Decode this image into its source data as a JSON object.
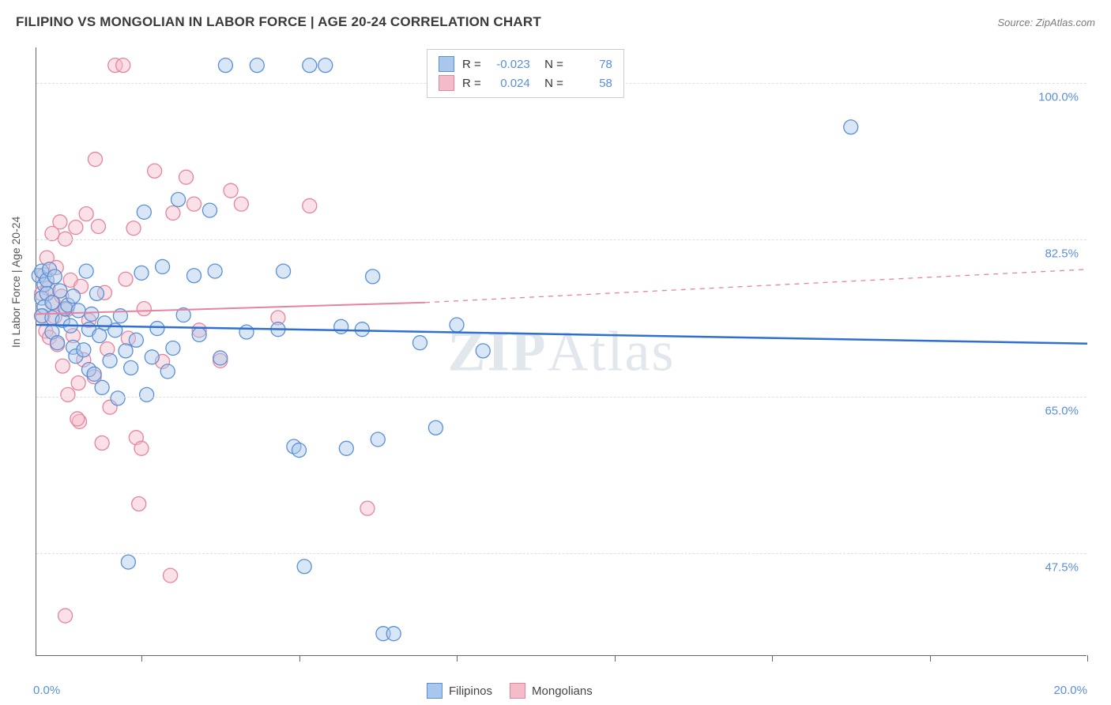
{
  "title": "FILIPINO VS MONGOLIAN IN LABOR FORCE | AGE 20-24 CORRELATION CHART",
  "source": "Source: ZipAtlas.com",
  "watermark_a": "ZIP",
  "watermark_b": "Atlas",
  "ylabel": "In Labor Force | Age 20-24",
  "chart": {
    "type": "scatter",
    "xlim": [
      0,
      20
    ],
    "ylim": [
      36,
      104
    ],
    "x_ticks": [
      2,
      5,
      8,
      11,
      14,
      17,
      20
    ],
    "x_min_label": "0.0%",
    "x_max_label": "20.0%",
    "y_gridlines": [
      47.5,
      65.0,
      82.5,
      100.0
    ],
    "y_labels": [
      "47.5%",
      "65.0%",
      "82.5%",
      "100.0%"
    ],
    "background_color": "#ffffff",
    "grid_color": "#e0e0e0",
    "axis_color": "#666666",
    "marker_radius": 9,
    "marker_stroke_width": 1.3,
    "marker_opacity": 0.45,
    "series": [
      {
        "name": "Filipinos",
        "color_fill": "#a9c7ec",
        "color_stroke": "#5b8fd6",
        "r": "-0.023",
        "n": "78",
        "points": [
          [
            0.05,
            78.5
          ],
          [
            0.1,
            79
          ],
          [
            0.1,
            76
          ],
          [
            0.15,
            77.5
          ],
          [
            0.2,
            78
          ],
          [
            0.2,
            76.5
          ],
          [
            0.15,
            75
          ],
          [
            0.1,
            74
          ],
          [
            0.25,
            79.2
          ],
          [
            0.3,
            75.5
          ],
          [
            0.3,
            73.8
          ],
          [
            0.3,
            72.2
          ],
          [
            0.35,
            78.4
          ],
          [
            0.4,
            71
          ],
          [
            0.45,
            76.8
          ],
          [
            0.5,
            73.5
          ],
          [
            0.55,
            74.8
          ],
          [
            0.6,
            75.2
          ],
          [
            0.65,
            72.9
          ],
          [
            0.7,
            70.5
          ],
          [
            0.7,
            76.2
          ],
          [
            0.75,
            69.5
          ],
          [
            0.8,
            74.6
          ],
          [
            0.9,
            70.2
          ],
          [
            0.95,
            79
          ],
          [
            1.0,
            72.5
          ],
          [
            1.0,
            68
          ],
          [
            1.05,
            74.2
          ],
          [
            1.1,
            67.5
          ],
          [
            1.15,
            76.5
          ],
          [
            1.2,
            71.8
          ],
          [
            1.25,
            66
          ],
          [
            1.3,
            73.2
          ],
          [
            1.4,
            69
          ],
          [
            1.5,
            72.4
          ],
          [
            1.55,
            64.8
          ],
          [
            1.6,
            74.0
          ],
          [
            1.7,
            70.1
          ],
          [
            1.75,
            46.5
          ],
          [
            1.8,
            68.2
          ],
          [
            1.9,
            71.3
          ],
          [
            2.0,
            78.8
          ],
          [
            2.05,
            85.6
          ],
          [
            2.1,
            65.2
          ],
          [
            2.2,
            69.4
          ],
          [
            2.3,
            72.6
          ],
          [
            2.4,
            79.5
          ],
          [
            2.5,
            67.8
          ],
          [
            2.6,
            70.4
          ],
          [
            2.7,
            87
          ],
          [
            2.8,
            74.1
          ],
          [
            3.0,
            78.5
          ],
          [
            3.1,
            71.9
          ],
          [
            3.3,
            85.8
          ],
          [
            3.4,
            79
          ],
          [
            3.5,
            69.3
          ],
          [
            3.6,
            102
          ],
          [
            4.0,
            72.2
          ],
          [
            4.2,
            102
          ],
          [
            4.6,
            72.5
          ],
          [
            4.7,
            79
          ],
          [
            4.9,
            59.4
          ],
          [
            5.0,
            59
          ],
          [
            5.1,
            46
          ],
          [
            5.2,
            102
          ],
          [
            5.5,
            102
          ],
          [
            5.8,
            72.8
          ],
          [
            5.9,
            59.2
          ],
          [
            6.2,
            72.5
          ],
          [
            6.4,
            78.4
          ],
          [
            6.5,
            60.2
          ],
          [
            6.6,
            38.5
          ],
          [
            6.8,
            38.5
          ],
          [
            7.3,
            71.0
          ],
          [
            7.6,
            61.5
          ],
          [
            8.0,
            73.0
          ],
          [
            8.5,
            70.1
          ],
          [
            15.5,
            95.1
          ]
        ],
        "trend_start": [
          0,
          73.0
        ],
        "trend_end": [
          20,
          70.9
        ],
        "trend_color": "#2f6fd0",
        "trend_width": 2.5
      },
      {
        "name": "Mongolians",
        "color_fill": "#f4bcc9",
        "color_stroke": "#e6839e",
        "r": "0.024",
        "n": "58",
        "points": [
          [
            0.1,
            76.5
          ],
          [
            0.12,
            74.0
          ],
          [
            0.15,
            78.6
          ],
          [
            0.18,
            72.3
          ],
          [
            0.2,
            80.5
          ],
          [
            0.22,
            77.1
          ],
          [
            0.25,
            71.6
          ],
          [
            0.3,
            83.2
          ],
          [
            0.32,
            75.5
          ],
          [
            0.35,
            73.9
          ],
          [
            0.38,
            79.4
          ],
          [
            0.4,
            70.8
          ],
          [
            0.45,
            84.5
          ],
          [
            0.48,
            76.2
          ],
          [
            0.5,
            68.4
          ],
          [
            0.55,
            82.6
          ],
          [
            0.58,
            74.7
          ],
          [
            0.6,
            65.2
          ],
          [
            0.65,
            78.0
          ],
          [
            0.7,
            71.8
          ],
          [
            0.75,
            83.9
          ],
          [
            0.8,
            66.5
          ],
          [
            0.82,
            62.2
          ],
          [
            0.85,
            77.3
          ],
          [
            0.9,
            69.1
          ],
          [
            0.95,
            85.4
          ],
          [
            1.0,
            73.5
          ],
          [
            1.1,
            67.2
          ],
          [
            1.12,
            91.5
          ],
          [
            1.18,
            84.0
          ],
          [
            1.25,
            59.8
          ],
          [
            1.3,
            76.6
          ],
          [
            1.35,
            70.3
          ],
          [
            1.4,
            63.8
          ],
          [
            1.5,
            102
          ],
          [
            1.65,
            102
          ],
          [
            1.7,
            78.1
          ],
          [
            1.75,
            71.5
          ],
          [
            1.85,
            83.8
          ],
          [
            1.9,
            60.4
          ],
          [
            1.95,
            53.0
          ],
          [
            2.05,
            74.8
          ],
          [
            2.25,
            90.2
          ],
          [
            2.4,
            68.9
          ],
          [
            2.55,
            45.0
          ],
          [
            2.6,
            85.5
          ],
          [
            2.85,
            89.5
          ],
          [
            3.0,
            86.5
          ],
          [
            3.1,
            72.4
          ],
          [
            3.5,
            69.0
          ],
          [
            3.7,
            88.0
          ],
          [
            3.9,
            86.5
          ],
          [
            4.6,
            73.8
          ],
          [
            0.55,
            40.5
          ],
          [
            0.78,
            62.5
          ],
          [
            2.0,
            59.2
          ],
          [
            6.3,
            52.5
          ],
          [
            5.2,
            86.3
          ]
        ],
        "trend_start": [
          0,
          74.2
        ],
        "trend_end_solid": [
          7.4,
          75.5
        ],
        "trend_end_dashed": [
          20,
          79.2
        ],
        "trend_color": "#e6839e",
        "trend_width": 2.0
      }
    ]
  },
  "legend_bottom": [
    {
      "label": "Filipinos",
      "fill": "#a9c7ec",
      "stroke": "#5b8fd6"
    },
    {
      "label": "Mongolians",
      "fill": "#f4bcc9",
      "stroke": "#e6839e"
    }
  ]
}
